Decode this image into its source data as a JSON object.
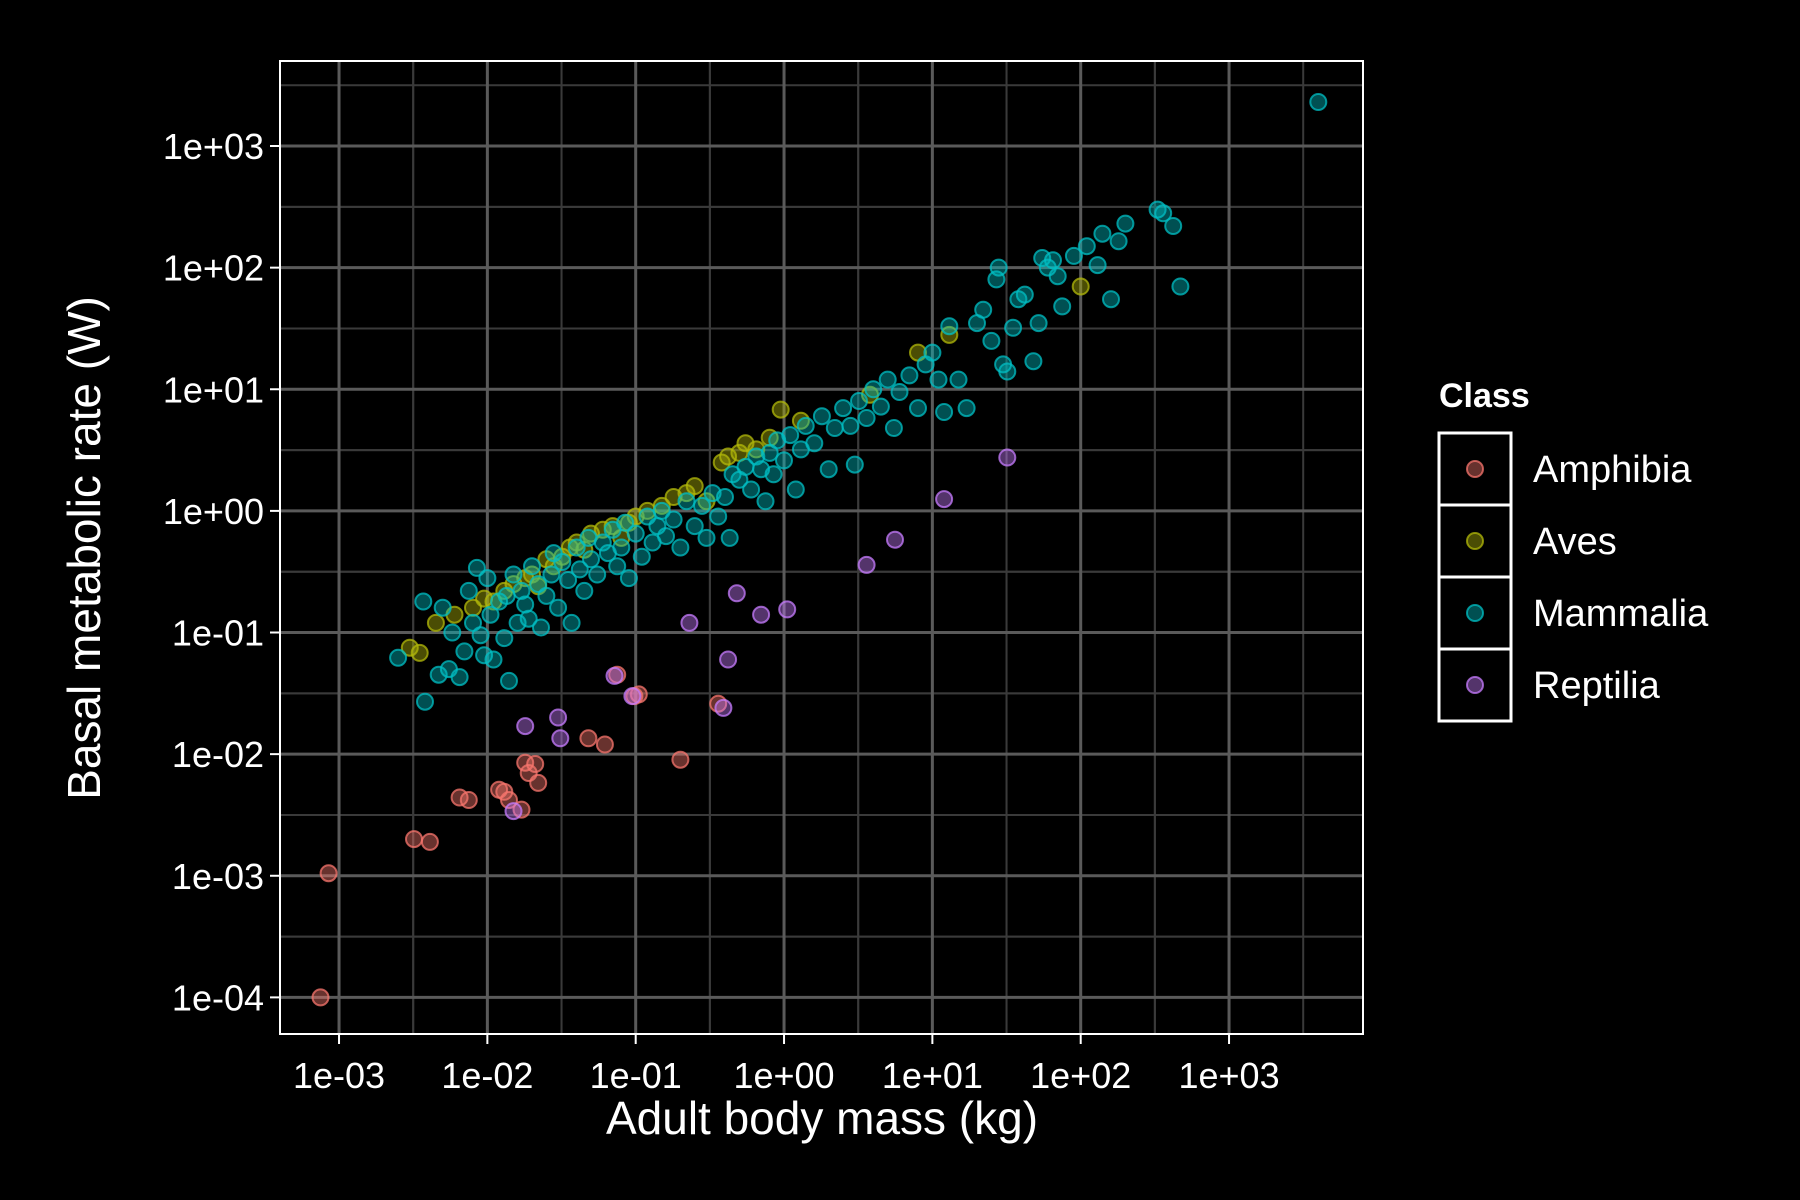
{
  "chart_data": {
    "type": "scatter",
    "xlabel": "Adult body mass (kg)",
    "ylabel": "Basal metabolic rate (W)",
    "x_scale": "log10",
    "y_scale": "log10",
    "xlim": [
      0.0004,
      8000
    ],
    "ylim": [
      5e-05,
      5000
    ],
    "x_ticks": [
      0.001,
      0.01,
      0.1,
      1,
      10,
      100,
      1000
    ],
    "x_tick_labels": [
      "1e-03",
      "1e-02",
      "1e-01",
      "1e+00",
      "1e+01",
      "1e+02",
      "1e+03"
    ],
    "y_ticks": [
      0.0001,
      0.001,
      0.01,
      0.1,
      1,
      10,
      100,
      1000
    ],
    "y_tick_labels": [
      "1e-04",
      "1e-03",
      "1e-02",
      "1e-01",
      "1e+00",
      "1e+01",
      "1e+02",
      "1e+03"
    ],
    "grid": true,
    "legend": {
      "title": "Class",
      "position": "right"
    },
    "series": [
      {
        "name": "Amphibia",
        "color": "#F8766D",
        "points": [
          [
            0.00075,
            0.0001
          ],
          [
            0.00085,
            0.00105
          ],
          [
            0.0032,
            0.002
          ],
          [
            0.0041,
            0.0019
          ],
          [
            0.0065,
            0.0044
          ],
          [
            0.0075,
            0.0042
          ],
          [
            0.012,
            0.0051
          ],
          [
            0.013,
            0.0049
          ],
          [
            0.014,
            0.0042
          ],
          [
            0.017,
            0.0035
          ],
          [
            0.018,
            0.0085
          ],
          [
            0.019,
            0.007
          ],
          [
            0.021,
            0.0083
          ],
          [
            0.022,
            0.0058
          ],
          [
            0.048,
            0.0135
          ],
          [
            0.062,
            0.012
          ],
          [
            0.098,
            0.03
          ],
          [
            0.105,
            0.031
          ],
          [
            0.2,
            0.009
          ],
          [
            0.36,
            0.026
          ],
          [
            0.075,
            0.045
          ]
        ]
      },
      {
        "name": "Aves",
        "color": "#B2B80A",
        "points": [
          [
            0.003,
            0.075
          ],
          [
            0.0035,
            0.068
          ],
          [
            0.0045,
            0.12
          ],
          [
            0.006,
            0.14
          ],
          [
            0.008,
            0.16
          ],
          [
            0.0095,
            0.19
          ],
          [
            0.011,
            0.18
          ],
          [
            0.013,
            0.22
          ],
          [
            0.015,
            0.25
          ],
          [
            0.018,
            0.28
          ],
          [
            0.02,
            0.3
          ],
          [
            0.022,
            0.24
          ],
          [
            0.025,
            0.4
          ],
          [
            0.028,
            0.35
          ],
          [
            0.032,
            0.42
          ],
          [
            0.036,
            0.5
          ],
          [
            0.04,
            0.55
          ],
          [
            0.045,
            0.48
          ],
          [
            0.05,
            0.65
          ],
          [
            0.06,
            0.7
          ],
          [
            0.07,
            0.75
          ],
          [
            0.08,
            0.6
          ],
          [
            0.09,
            0.8
          ],
          [
            0.1,
            0.9
          ],
          [
            0.12,
            1.0
          ],
          [
            0.15,
            1.1
          ],
          [
            0.18,
            1.3
          ],
          [
            0.22,
            1.4
          ],
          [
            0.25,
            1.6
          ],
          [
            0.3,
            1.2
          ],
          [
            0.38,
            2.5
          ],
          [
            0.42,
            2.8
          ],
          [
            0.5,
            3.0
          ],
          [
            0.55,
            3.6
          ],
          [
            0.65,
            3.2
          ],
          [
            0.8,
            4.0
          ],
          [
            0.95,
            6.8
          ],
          [
            1.3,
            5.5
          ],
          [
            3.8,
            9.0
          ],
          [
            8.0,
            20.0
          ],
          [
            13.0,
            28.0
          ],
          [
            100.0,
            70.0
          ]
        ]
      },
      {
        "name": "Mammalia",
        "color": "#00BFC4",
        "points": [
          [
            0.0025,
            0.062
          ],
          [
            0.0037,
            0.18
          ],
          [
            0.0038,
            0.027
          ],
          [
            0.0047,
            0.045
          ],
          [
            0.005,
            0.16
          ],
          [
            0.0055,
            0.05
          ],
          [
            0.0058,
            0.1
          ],
          [
            0.0065,
            0.043
          ],
          [
            0.007,
            0.07
          ],
          [
            0.0075,
            0.22
          ],
          [
            0.008,
            0.12
          ],
          [
            0.0085,
            0.34
          ],
          [
            0.009,
            0.095
          ],
          [
            0.0095,
            0.065
          ],
          [
            0.01,
            0.28
          ],
          [
            0.0105,
            0.14
          ],
          [
            0.011,
            0.06
          ],
          [
            0.012,
            0.18
          ],
          [
            0.013,
            0.09
          ],
          [
            0.0135,
            0.2
          ],
          [
            0.014,
            0.04
          ],
          [
            0.015,
            0.3
          ],
          [
            0.016,
            0.12
          ],
          [
            0.017,
            0.22
          ],
          [
            0.018,
            0.17
          ],
          [
            0.019,
            0.13
          ],
          [
            0.02,
            0.35
          ],
          [
            0.022,
            0.25
          ],
          [
            0.023,
            0.11
          ],
          [
            0.025,
            0.2
          ],
          [
            0.027,
            0.3
          ],
          [
            0.028,
            0.45
          ],
          [
            0.03,
            0.16
          ],
          [
            0.032,
            0.38
          ],
          [
            0.035,
            0.27
          ],
          [
            0.037,
            0.12
          ],
          [
            0.04,
            0.5
          ],
          [
            0.042,
            0.33
          ],
          [
            0.045,
            0.22
          ],
          [
            0.048,
            0.6
          ],
          [
            0.05,
            0.4
          ],
          [
            0.055,
            0.3
          ],
          [
            0.06,
            0.55
          ],
          [
            0.065,
            0.45
          ],
          [
            0.07,
            0.7
          ],
          [
            0.075,
            0.35
          ],
          [
            0.08,
            0.5
          ],
          [
            0.085,
            0.8
          ],
          [
            0.09,
            0.28
          ],
          [
            0.1,
            0.65
          ],
          [
            0.11,
            0.42
          ],
          [
            0.12,
            0.9
          ],
          [
            0.13,
            0.55
          ],
          [
            0.14,
            0.75
          ],
          [
            0.15,
            1.0
          ],
          [
            0.16,
            0.62
          ],
          [
            0.18,
            0.85
          ],
          [
            0.2,
            0.5
          ],
          [
            0.22,
            1.2
          ],
          [
            0.25,
            0.75
          ],
          [
            0.28,
            1.1
          ],
          [
            0.3,
            0.6
          ],
          [
            0.33,
            1.4
          ],
          [
            0.36,
            0.9
          ],
          [
            0.4,
            1.3
          ],
          [
            0.43,
            0.6
          ],
          [
            0.45,
            2.0
          ],
          [
            0.5,
            1.8
          ],
          [
            0.55,
            2.3
          ],
          [
            0.6,
            1.5
          ],
          [
            0.65,
            2.8
          ],
          [
            0.7,
            2.2
          ],
          [
            0.75,
            1.2
          ],
          [
            0.8,
            3.0
          ],
          [
            0.85,
            2.0
          ],
          [
            0.9,
            3.8
          ],
          [
            1.0,
            2.6
          ],
          [
            1.1,
            4.2
          ],
          [
            1.2,
            1.5
          ],
          [
            1.3,
            3.2
          ],
          [
            1.4,
            5.0
          ],
          [
            1.6,
            3.6
          ],
          [
            1.8,
            6.0
          ],
          [
            2.0,
            2.2
          ],
          [
            2.2,
            4.8
          ],
          [
            2.5,
            7.0
          ],
          [
            2.8,
            5.0
          ],
          [
            3.0,
            2.4
          ],
          [
            3.2,
            8.0
          ],
          [
            3.6,
            5.8
          ],
          [
            4.0,
            10.0
          ],
          [
            4.5,
            7.2
          ],
          [
            5.0,
            12.0
          ],
          [
            5.5,
            4.8
          ],
          [
            6.0,
            9.5
          ],
          [
            7.0,
            13.0
          ],
          [
            8.0,
            7.0
          ],
          [
            9.0,
            16.0
          ],
          [
            10.0,
            20.0
          ],
          [
            11.0,
            12.0
          ],
          [
            12.0,
            6.5
          ],
          [
            13.0,
            33.0
          ],
          [
            15.0,
            12.0
          ],
          [
            17.0,
            7.0
          ],
          [
            20.0,
            35.0
          ],
          [
            22.0,
            45.0
          ],
          [
            25.0,
            25.0
          ],
          [
            27.0,
            80.0
          ],
          [
            28.0,
            100.0
          ],
          [
            30.0,
            16.0
          ],
          [
            32.0,
            14.0
          ],
          [
            35.0,
            32.0
          ],
          [
            38.0,
            55.0
          ],
          [
            42.0,
            60.0
          ],
          [
            48.0,
            17.0
          ],
          [
            52.0,
            35.0
          ],
          [
            55.0,
            120.0
          ],
          [
            60.0,
            100.0
          ],
          [
            65.0,
            115.0
          ],
          [
            70.0,
            85.0
          ],
          [
            75.0,
            48.0
          ],
          [
            90.0,
            125.0
          ],
          [
            110.0,
            150.0
          ],
          [
            130.0,
            105.0
          ],
          [
            140.0,
            190.0
          ],
          [
            160.0,
            55.0
          ],
          [
            180.0,
            165.0
          ],
          [
            200.0,
            230.0
          ],
          [
            330.0,
            300.0
          ],
          [
            360.0,
            280.0
          ],
          [
            420.0,
            220.0
          ],
          [
            470.0,
            70.0
          ],
          [
            4000.0,
            2300.0
          ]
        ]
      },
      {
        "name": "Reptilia",
        "color": "#C77CFF",
        "points": [
          [
            0.015,
            0.0034
          ],
          [
            0.018,
            0.017
          ],
          [
            0.03,
            0.02
          ],
          [
            0.031,
            0.0135
          ],
          [
            0.072,
            0.044
          ],
          [
            0.095,
            0.03
          ],
          [
            0.23,
            0.12
          ],
          [
            0.39,
            0.024
          ],
          [
            0.42,
            0.06
          ],
          [
            0.48,
            0.21
          ],
          [
            0.7,
            0.14
          ],
          [
            1.05,
            0.155
          ],
          [
            3.6,
            0.36
          ],
          [
            5.6,
            0.58
          ],
          [
            12.0,
            1.25
          ],
          [
            32.0,
            2.75
          ]
        ]
      }
    ]
  }
}
